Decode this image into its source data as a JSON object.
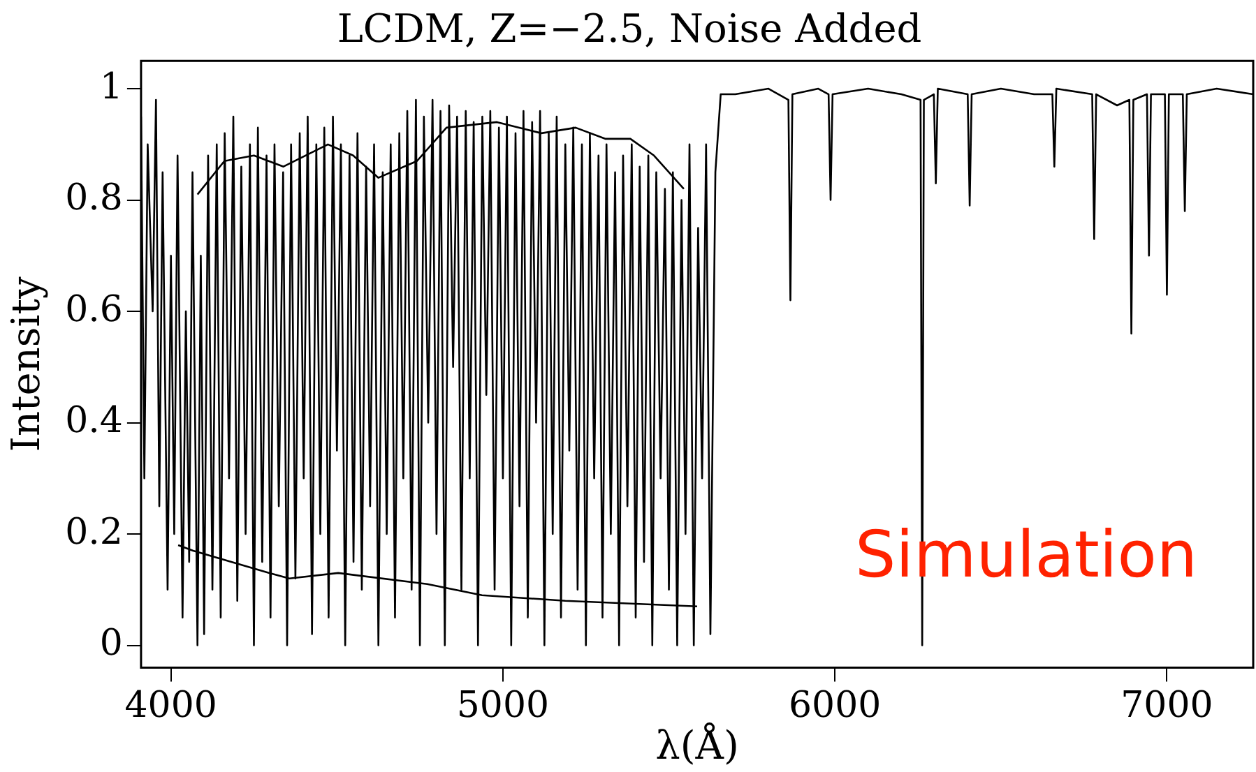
{
  "chart_data": {
    "type": "line",
    "title": "LCDM, Z=−2.5, Noise Added",
    "xlabel": "λ(Å)",
    "ylabel": "Intensity",
    "annotations": [
      "Simulation"
    ],
    "xlim": [
      3910,
      7260
    ],
    "ylim": [
      -0.04,
      1.05
    ],
    "xticks": [
      4000,
      5000,
      6000,
      7000
    ],
    "yticks": [
      0,
      0.2,
      0.4,
      0.6,
      0.8,
      1
    ],
    "grid": false,
    "marker": "none",
    "line_style": "solid",
    "series": [
      {
        "color": "#000000",
        "x": [
          3910,
          3920,
          3930,
          3945,
          3955,
          3965,
          3975,
          3990,
          4000,
          4010,
          4020,
          4035,
          4045,
          4055,
          4065,
          4080,
          4090,
          4100,
          4112,
          4125,
          4138,
          4150,
          4162,
          4175,
          4188,
          4200,
          4212,
          4225,
          4238,
          4250,
          4262,
          4275,
          4288,
          4300,
          4312,
          4325,
          4338,
          4350,
          4362,
          4375,
          4388,
          4400,
          4412,
          4425,
          4438,
          4450,
          4462,
          4475,
          4488,
          4500,
          4512,
          4525,
          4538,
          4550,
          4562,
          4575,
          4588,
          4600,
          4612,
          4625,
          4638,
          4650,
          4662,
          4675,
          4688,
          4700,
          4712,
          4725,
          4738,
          4750,
          4762,
          4775,
          4788,
          4800,
          4812,
          4825,
          4838,
          4850,
          4862,
          4875,
          4888,
          4900,
          4912,
          4925,
          4938,
          4950,
          4962,
          4975,
          4988,
          5000,
          5012,
          5025,
          5038,
          5050,
          5062,
          5075,
          5088,
          5100,
          5112,
          5125,
          5138,
          5150,
          5162,
          5175,
          5188,
          5200,
          5212,
          5225,
          5238,
          5250,
          5262,
          5275,
          5288,
          5300,
          5312,
          5325,
          5338,
          5350,
          5362,
          5375,
          5388,
          5400,
          5412,
          5425,
          5438,
          5450,
          5462,
          5475,
          5488,
          5500,
          5512,
          5525,
          5538,
          5550,
          5562,
          5575,
          5588,
          5600,
          5612,
          5625,
          5640,
          5656,
          5700,
          5800,
          5860,
          5866,
          5872,
          5950,
          5981,
          5987,
          5993,
          6100,
          6200,
          6258,
          6263,
          6268,
          6298,
          6304,
          6310,
          6400,
          6406,
          6412,
          6500,
          6600,
          6655,
          6661,
          6667,
          6775,
          6781,
          6787,
          6850,
          6887,
          6893,
          6899,
          6940,
          6946,
          6952,
          6994,
          7000,
          7006,
          7048,
          7054,
          7060,
          7150,
          7260
        ],
        "values": [
          0.95,
          0.3,
          0.9,
          0.6,
          0.98,
          0.25,
          0.85,
          0.1,
          0.7,
          0.2,
          0.88,
          0.05,
          0.6,
          0.15,
          0.85,
          0.0,
          0.7,
          0.02,
          0.88,
          0.1,
          0.9,
          0.05,
          0.92,
          0.3,
          0.95,
          0.08,
          0.86,
          0.2,
          0.9,
          0.0,
          0.93,
          0.15,
          0.88,
          0.05,
          0.9,
          0.25,
          0.85,
          0.0,
          0.9,
          0.12,
          0.92,
          0.3,
          0.95,
          0.02,
          0.9,
          0.2,
          0.93,
          0.05,
          0.95,
          0.35,
          0.9,
          0.0,
          0.88,
          0.15,
          0.92,
          0.1,
          0.86,
          0.25,
          0.9,
          0.0,
          0.85,
          0.2,
          0.9,
          0.05,
          0.92,
          0.3,
          0.96,
          0.1,
          0.98,
          0.0,
          0.95,
          0.4,
          0.98,
          0.2,
          0.96,
          0.0,
          0.97,
          0.5,
          0.95,
          0.1,
          0.96,
          0.3,
          0.94,
          0.0,
          0.95,
          0.45,
          0.96,
          0.1,
          0.93,
          0.3,
          0.95,
          0.0,
          0.92,
          0.25,
          0.96,
          0.05,
          0.94,
          0.4,
          0.96,
          0.0,
          0.92,
          0.2,
          0.95,
          0.05,
          0.9,
          0.35,
          0.93,
          0.1,
          0.9,
          0.0,
          0.92,
          0.3,
          0.88,
          0.05,
          0.9,
          0.2,
          0.85,
          0.0,
          0.88,
          0.25,
          0.9,
          0.05,
          0.86,
          0.15,
          0.88,
          0.0,
          0.85,
          0.3,
          0.82,
          0.1,
          0.85,
          0.0,
          0.8,
          0.2,
          0.9,
          0.0,
          0.75,
          0.3,
          0.9,
          0.02,
          0.85,
          0.99,
          0.99,
          1.0,
          0.98,
          0.62,
          0.99,
          1.0,
          0.99,
          0.8,
          0.99,
          1.0,
          0.99,
          0.98,
          0.0,
          0.98,
          0.99,
          0.83,
          1.0,
          0.99,
          0.79,
          0.99,
          1.0,
          0.99,
          0.99,
          0.86,
          1.0,
          0.99,
          0.73,
          0.99,
          0.97,
          0.98,
          0.56,
          0.98,
          0.99,
          0.7,
          0.99,
          0.99,
          0.63,
          0.99,
          0.99,
          0.78,
          0.99,
          1.0,
          0.99
        ]
      },
      {
        "color": "#000000",
        "x": [
          4080,
          4161,
          4250,
          4339,
          4473,
          4549,
          4625,
          4741,
          4830,
          4982,
          5116,
          5219,
          5308,
          5384,
          5455,
          5545
        ],
        "values": [
          0.81,
          0.87,
          0.88,
          0.86,
          0.9,
          0.88,
          0.84,
          0.87,
          0.93,
          0.94,
          0.92,
          0.93,
          0.91,
          0.91,
          0.88,
          0.82
        ]
      },
      {
        "color": "#000000",
        "x": [
          4022,
          4067,
          4295,
          4357,
          4504,
          4772,
          4937,
          5188,
          5585
        ],
        "values": [
          0.18,
          0.17,
          0.13,
          0.12,
          0.13,
          0.11,
          0.09,
          0.08,
          0.07
        ]
      }
    ]
  }
}
